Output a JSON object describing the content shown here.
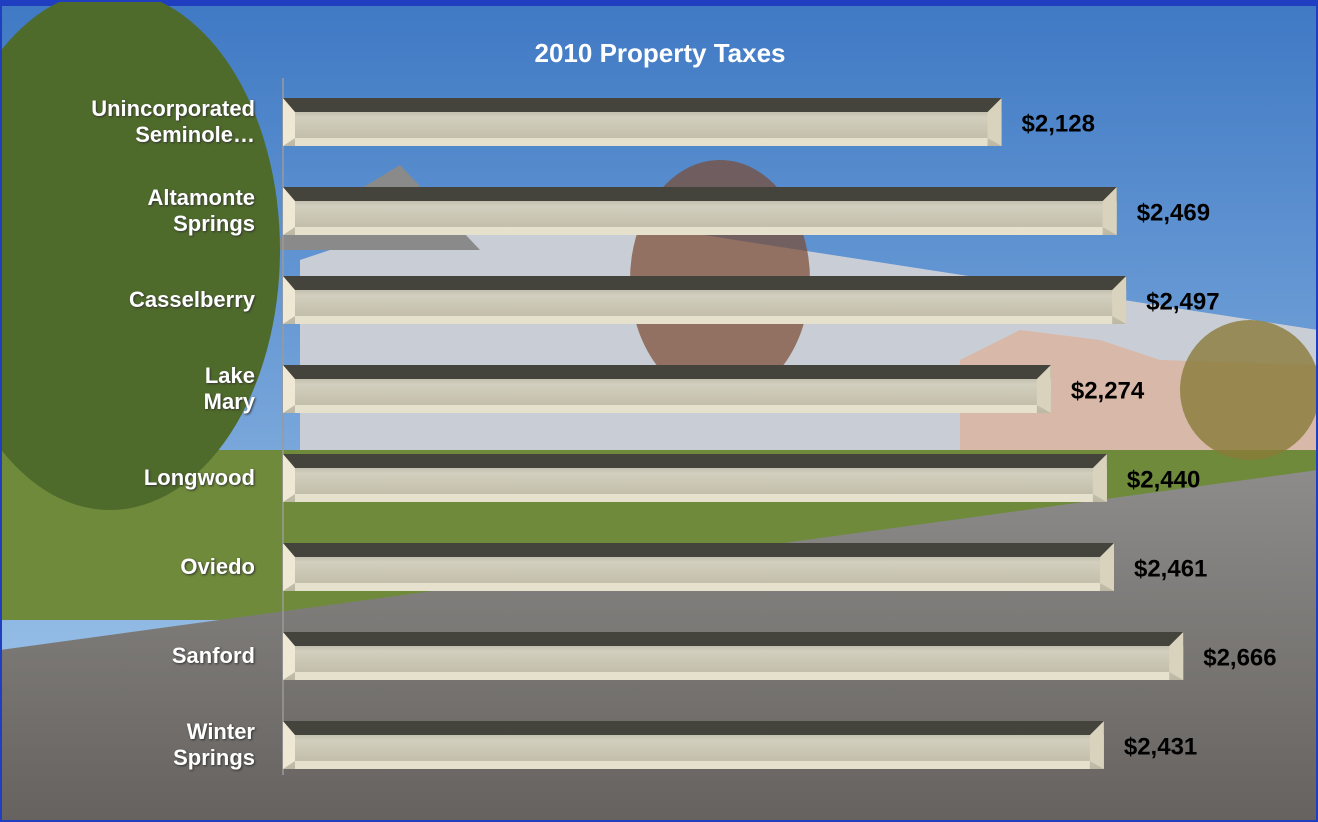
{
  "chart_data": {
    "type": "bar",
    "orientation": "horizontal",
    "title": "2010 Property Taxes",
    "categories": [
      "Unincorporated\nSeminole…",
      "Altamonte\nSprings",
      "Casselberry",
      "Lake\nMary",
      "Longwood",
      "Oviedo",
      "Sanford",
      "Winter\nSprings"
    ],
    "values": [
      2128,
      2469,
      2497,
      2274,
      2440,
      2461,
      2666,
      2431
    ],
    "value_labels": [
      "$2,128",
      "$2,469",
      "$2,497",
      "$2,274",
      "$2,440",
      "$2,461",
      "$2,666",
      "$2,431"
    ],
    "color": "#c9c4b0",
    "xlim": [
      0,
      3000
    ]
  }
}
